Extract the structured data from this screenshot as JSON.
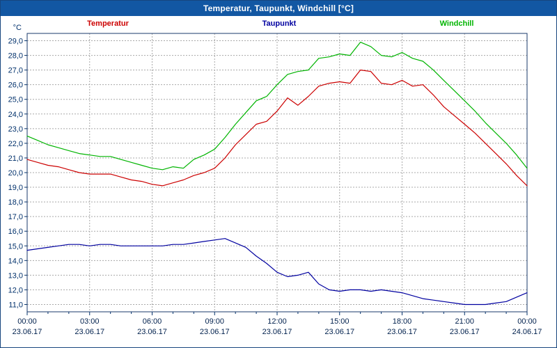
{
  "window": {
    "title": "Temperatur, Taupunkt, Windchill [°C]",
    "titlebar_color": "#1257a3"
  },
  "legend": [
    {
      "label": "Temperatur",
      "color": "#cc0000"
    },
    {
      "label": "Taupunkt",
      "color": "#0000a0"
    },
    {
      "label": "Windchill",
      "color": "#00b400"
    }
  ],
  "chart_data": {
    "type": "line",
    "title": "Temperatur, Taupunkt, Windchill [°C]",
    "xlabel": "",
    "ylabel": "°C",
    "unit_label": "°C",
    "ylim": [
      11,
      29
    ],
    "ytick_step": 1,
    "grid": "dashed",
    "legend_position": "top",
    "x_hours": [
      0,
      0.5,
      1,
      1.5,
      2,
      2.5,
      3,
      3.5,
      4,
      4.5,
      5,
      5.5,
      6,
      6.5,
      7,
      7.5,
      8,
      8.5,
      9,
      9.5,
      10,
      10.5,
      11,
      11.5,
      12,
      12.5,
      13,
      13.5,
      14,
      14.5,
      15,
      15.5,
      16,
      16.5,
      17,
      17.5,
      18,
      18.5,
      19,
      19.5,
      20,
      20.5,
      21,
      21.5,
      22,
      22.5,
      23,
      23.5,
      24
    ],
    "xticks": [
      {
        "time": "00:00",
        "date": "23.06.17"
      },
      {
        "time": "03:00",
        "date": "23.06.17"
      },
      {
        "time": "06:00",
        "date": "23.06.17"
      },
      {
        "time": "09:00",
        "date": "23.06.17"
      },
      {
        "time": "12:00",
        "date": "23.06.17"
      },
      {
        "time": "15:00",
        "date": "23.06.17"
      },
      {
        "time": "18:00",
        "date": "23.06.17"
      },
      {
        "time": "21:00",
        "date": "23.06.17"
      },
      {
        "time": "00:00",
        "date": "24.06.17"
      }
    ],
    "series": [
      {
        "name": "Temperatur",
        "color": "#cc0000",
        "values": [
          20.9,
          20.7,
          20.5,
          20.4,
          20.2,
          20.0,
          19.9,
          19.9,
          19.9,
          19.7,
          19.5,
          19.4,
          19.2,
          19.1,
          19.3,
          19.5,
          19.8,
          20.0,
          20.3,
          21.0,
          21.9,
          22.6,
          23.3,
          23.5,
          24.2,
          25.1,
          24.6,
          25.2,
          25.9,
          26.1,
          26.2,
          26.1,
          27.0,
          26.9,
          26.1,
          26.0,
          26.3,
          25.9,
          26.0,
          25.3,
          24.5,
          23.9,
          23.3,
          22.7,
          22.0,
          21.3,
          20.6,
          19.8,
          19.1
        ]
      },
      {
        "name": "Taupunkt",
        "color": "#0000a0",
        "values": [
          14.7,
          14.8,
          14.9,
          15.0,
          15.1,
          15.1,
          15.0,
          15.1,
          15.1,
          15.0,
          15.0,
          15.0,
          15.0,
          15.0,
          15.1,
          15.1,
          15.2,
          15.3,
          15.4,
          15.5,
          15.2,
          14.9,
          14.3,
          13.8,
          13.2,
          12.9,
          13.0,
          13.2,
          12.4,
          12.0,
          11.9,
          12.0,
          12.0,
          11.9,
          12.0,
          11.9,
          11.8,
          11.6,
          11.4,
          11.3,
          11.2,
          11.1,
          11.0,
          11.0,
          11.0,
          11.1,
          11.2,
          11.5,
          11.8
        ]
      },
      {
        "name": "Windchill",
        "color": "#00b400",
        "values": [
          22.5,
          22.2,
          21.9,
          21.7,
          21.5,
          21.3,
          21.2,
          21.1,
          21.1,
          20.9,
          20.7,
          20.5,
          20.3,
          20.2,
          20.4,
          20.3,
          20.9,
          21.2,
          21.6,
          22.4,
          23.3,
          24.1,
          24.9,
          25.2,
          26.0,
          26.7,
          26.9,
          27.0,
          27.8,
          27.9,
          28.1,
          28.0,
          28.9,
          28.6,
          28.0,
          27.9,
          28.2,
          27.8,
          27.6,
          27.0,
          26.3,
          25.6,
          24.9,
          24.2,
          23.4,
          22.7,
          22.0,
          21.2,
          20.3
        ]
      }
    ]
  }
}
